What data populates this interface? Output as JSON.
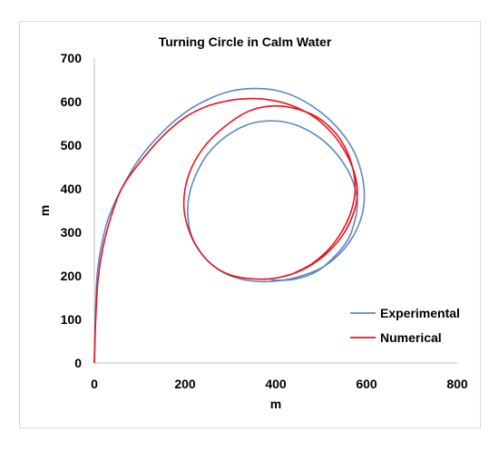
{
  "chart_data": {
    "type": "line",
    "title": "Turning Circle in Calm Water",
    "xlabel": "m",
    "ylabel": "m",
    "xlim": [
      0,
      800
    ],
    "ylim": [
      0,
      700
    ],
    "xticks": [
      "0",
      "200",
      "400",
      "600",
      "800"
    ],
    "yticks": [
      "0",
      "100",
      "200",
      "300",
      "400",
      "500",
      "600",
      "700"
    ],
    "grid": false,
    "legend_position": "right",
    "series": [
      {
        "name": "Experimental",
        "color": "#5b87c5",
        "x": [
          0,
          2,
          6,
          14,
          30,
          60,
          100,
          150,
          200,
          250,
          300,
          350,
          400,
          450,
          500,
          540,
          570,
          588,
          595,
          590,
          570,
          540,
          500,
          450,
          400,
          350,
          300,
          260,
          230,
          212,
          206,
          210,
          225,
          250,
          290,
          340,
          390,
          440,
          490,
          530,
          560,
          575,
          580,
          575,
          560,
          530,
          490,
          440,
          390
        ],
        "y": [
          0,
          100,
          200,
          260,
          330,
          400,
          470,
          530,
          575,
          605,
          624,
          630,
          626,
          608,
          575,
          535,
          490,
          440,
          390,
          340,
          290,
          250,
          218,
          198,
          188,
          188,
          200,
          225,
          260,
          300,
          345,
          390,
          435,
          480,
          520,
          548,
          556,
          548,
          522,
          485,
          440,
          400,
          370,
          330,
          285,
          245,
          210,
          192,
          190
        ]
      },
      {
        "name": "Numerical",
        "color": "#e8141b",
        "x": [
          0,
          3,
          8,
          18,
          35,
          60,
          100,
          150,
          200,
          250,
          300,
          340,
          380,
          430,
          480,
          520,
          550,
          572,
          580,
          570,
          545,
          505,
          455,
          400,
          350,
          300,
          260,
          230,
          210,
          198,
          200,
          215,
          245,
          290,
          340,
          390,
          440,
          490,
          530,
          555,
          570,
          575,
          568,
          550,
          520,
          480,
          440
        ],
        "y": [
          0,
          100,
          190,
          260,
          330,
          400,
          460,
          520,
          564,
          590,
          603,
          607,
          605,
          593,
          568,
          532,
          490,
          440,
          390,
          340,
          290,
          245,
          212,
          195,
          193,
          202,
          225,
          260,
          300,
          350,
          400,
          450,
          500,
          545,
          578,
          590,
          585,
          565,
          530,
          490,
          445,
          400,
          355,
          310,
          265,
          228,
          206
        ]
      }
    ]
  }
}
